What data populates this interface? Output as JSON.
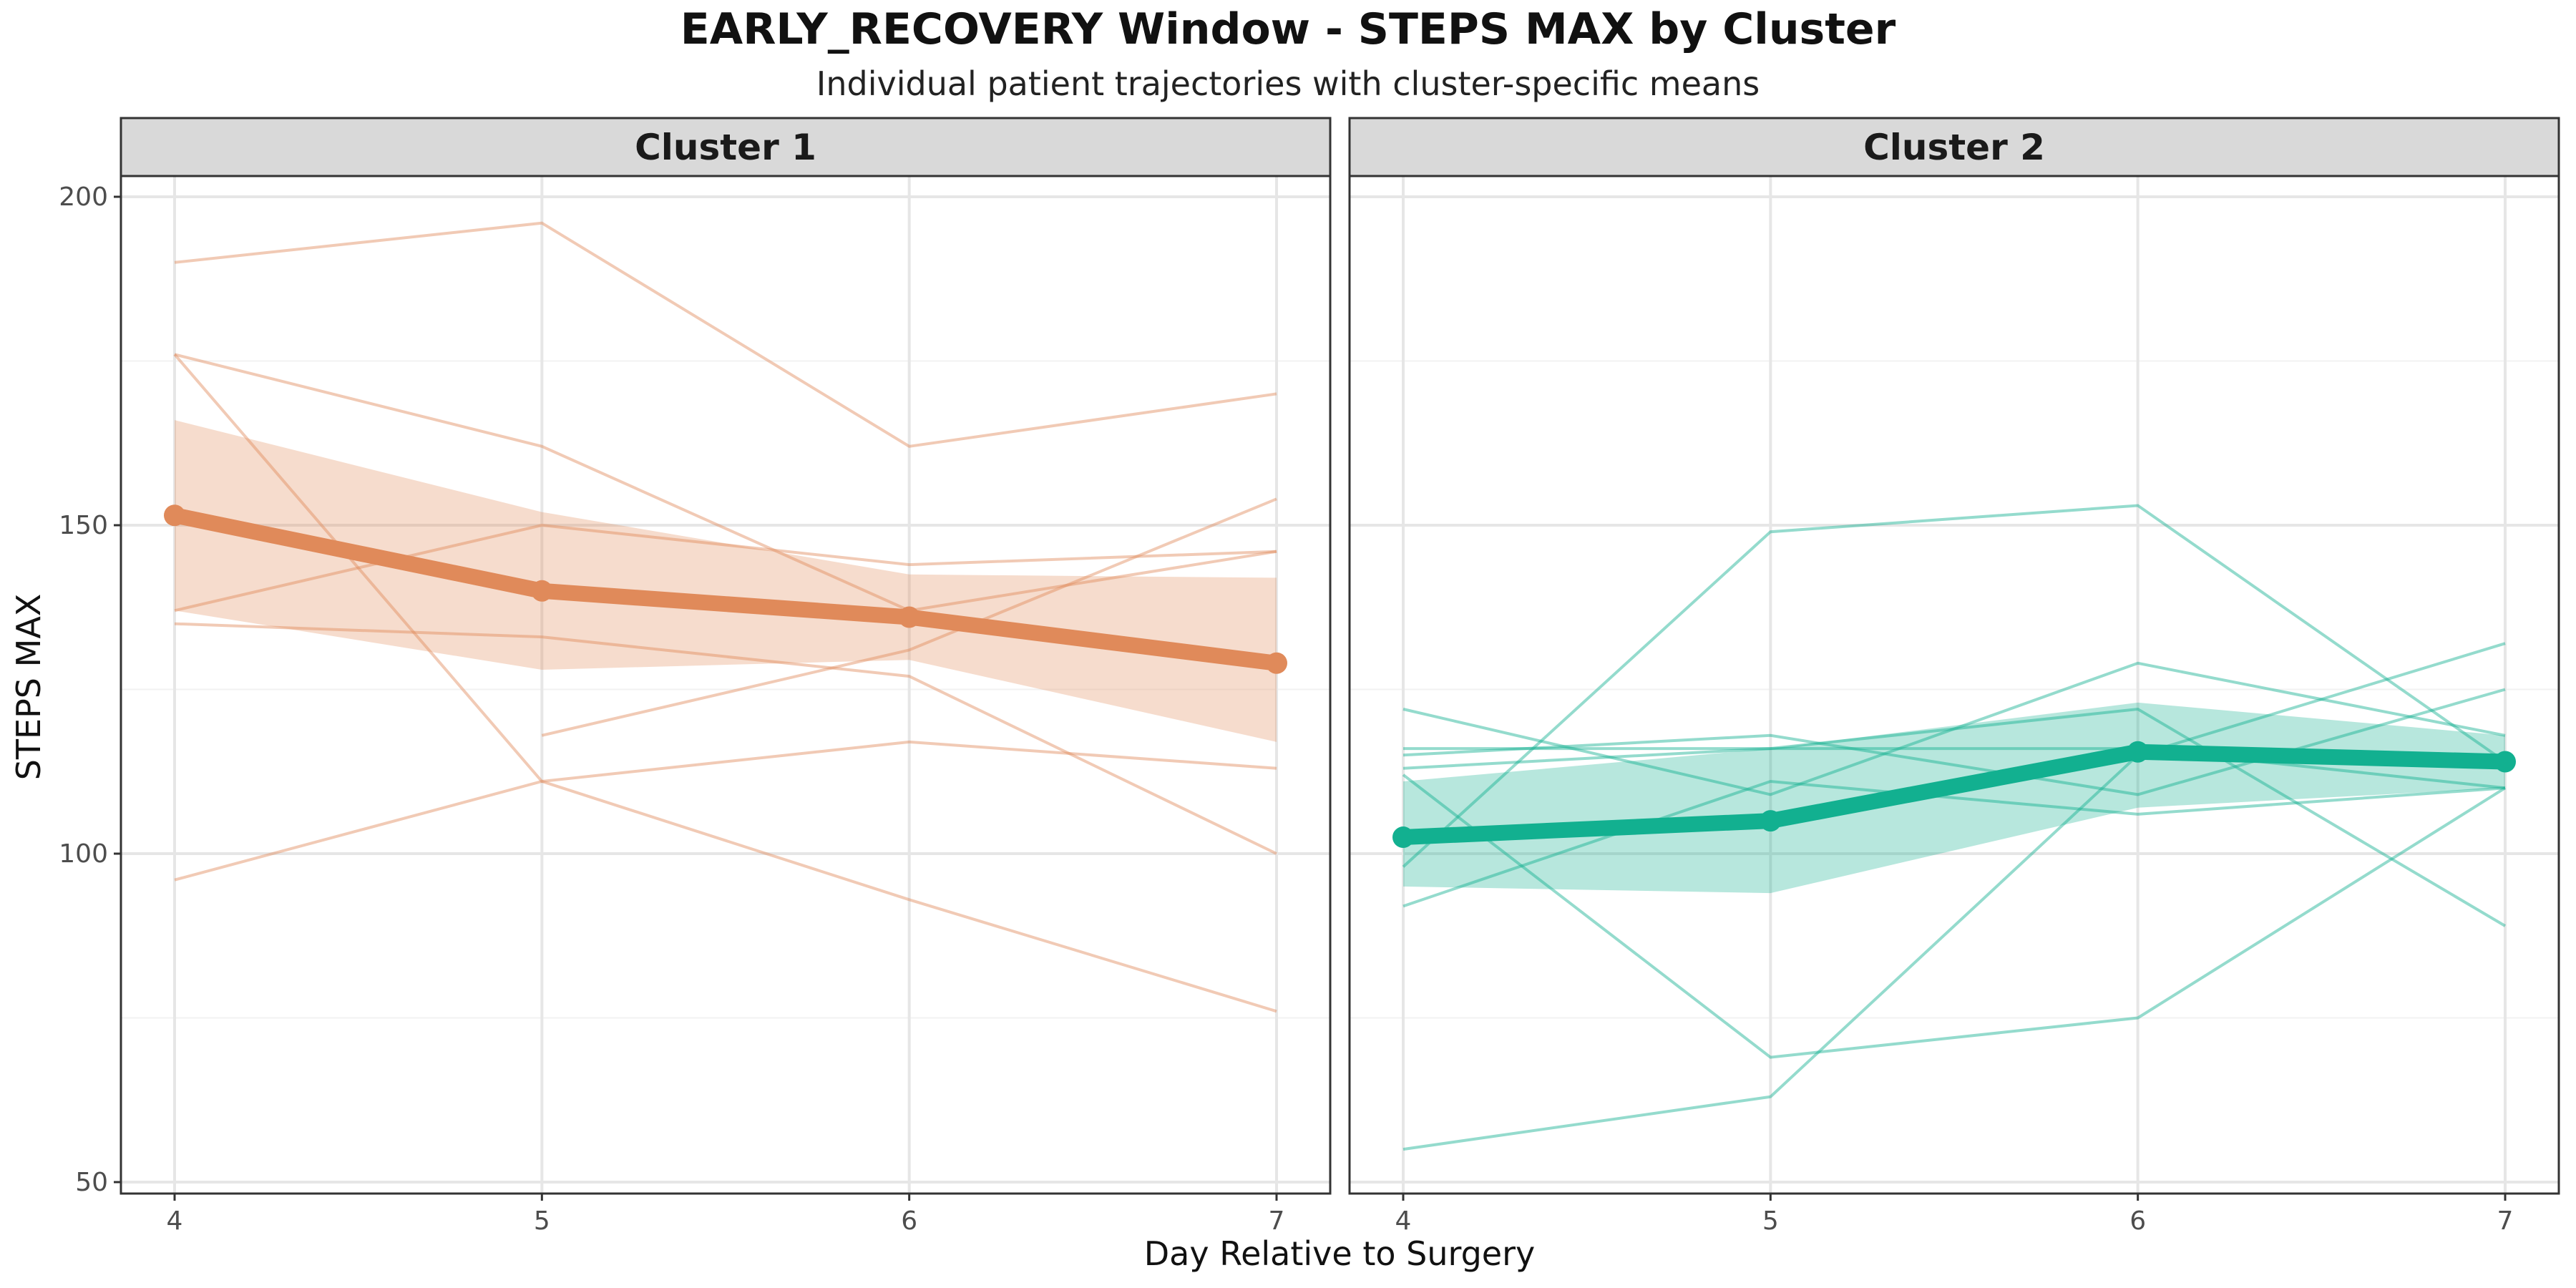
{
  "chart_data": {
    "type": "line",
    "title": "EARLY_RECOVERY Window - STEPS MAX by Cluster",
    "subtitle": "Individual patient trajectories with cluster-specific means",
    "xlabel": "Day Relative to Surgery",
    "ylabel": "STEPS MAX",
    "x": [
      4,
      5,
      6,
      7
    ],
    "xticks": [
      4,
      5,
      6,
      7
    ],
    "yticks": [
      50,
      100,
      150,
      200
    ],
    "ylim": [
      47,
      200
    ],
    "grid": true,
    "panels": [
      {
        "label": "Cluster 1",
        "color": "#e08a5a",
        "mean": [
          151.5,
          140,
          136,
          129
        ],
        "ribbon_lower": [
          137,
          128,
          129.5,
          117
        ],
        "ribbon_upper": [
          166,
          152,
          142.5,
          142
        ],
        "individuals": [
          [
            190,
            196,
            162,
            170
          ],
          [
            176,
            162,
            137,
            146
          ],
          [
            176,
            111,
            93,
            76
          ],
          [
            137,
            150,
            144,
            146
          ],
          [
            135,
            133,
            127,
            100
          ],
          [
            96,
            111,
            117,
            113
          ],
          [
            null,
            118,
            131,
            154
          ]
        ]
      },
      {
        "label": "Cluster 2",
        "color": "#12b090",
        "mean": [
          102.5,
          105,
          115.5,
          114
        ],
        "ribbon_lower": [
          95,
          94,
          107,
          110
        ],
        "ribbon_upper": [
          111,
          116,
          123,
          118
        ],
        "individuals": [
          [
            122,
            109,
            129,
            118
          ],
          [
            116,
            116,
            116,
            110
          ],
          [
            115,
            118,
            109,
            125
          ],
          [
            113,
            116,
            122,
            89
          ],
          [
            112,
            69,
            75,
            110
          ],
          [
            98,
            149,
            153,
            114
          ],
          [
            92,
            111,
            106,
            110
          ],
          [
            55,
            63,
            115,
            132
          ]
        ]
      }
    ]
  }
}
